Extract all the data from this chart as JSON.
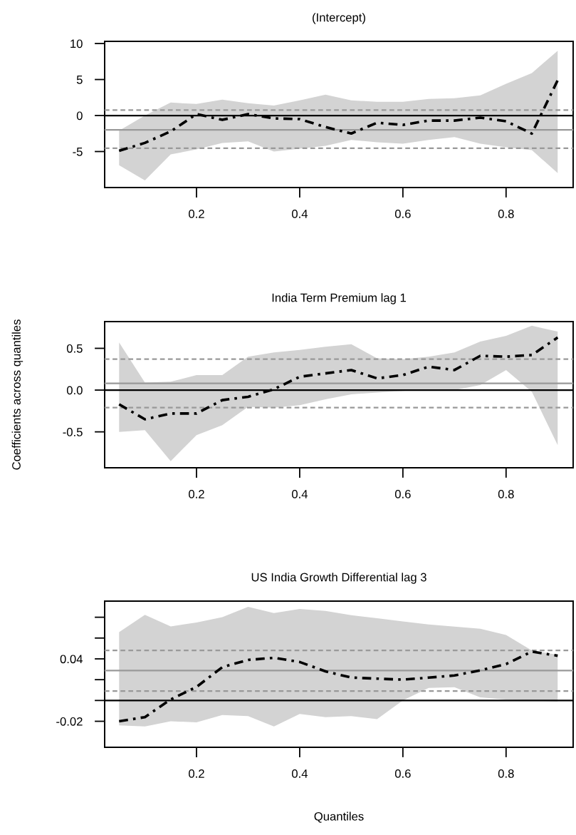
{
  "chart_data": [
    {
      "type": "line",
      "title": "(Intercept)",
      "x": [
        0.05,
        0.1,
        0.15,
        0.2,
        0.25,
        0.3,
        0.35,
        0.4,
        0.45,
        0.5,
        0.55,
        0.6,
        0.65,
        0.7,
        0.75,
        0.8,
        0.85,
        0.9
      ],
      "series": [
        {
          "color": "#000000",
          "line_style": "dashdot",
          "values": [
            -4.9,
            -3.8,
            -2.2,
            0.2,
            -0.6,
            0.2,
            -0.4,
            -0.5,
            -1.6,
            -2.5,
            -1.0,
            -1.3,
            -0.7,
            -0.7,
            -0.3,
            -0.8,
            -2.5,
            4.9
          ],
          "lower": [
            -6.9,
            -9.0,
            -5.4,
            -4.7,
            -3.8,
            -3.6,
            -5.0,
            -4.6,
            -4.2,
            -3.4,
            -3.7,
            -3.9,
            -3.4,
            -3.0,
            -3.9,
            -4.4,
            -4.8,
            -8.0
          ],
          "upper": [
            -2.1,
            0.0,
            1.8,
            1.6,
            2.2,
            1.7,
            1.4,
            2.1,
            2.9,
            2.1,
            1.9,
            1.9,
            2.3,
            2.4,
            2.8,
            4.4,
            5.9,
            9.0
          ]
        }
      ],
      "xlim": [
        0.022,
        0.93
      ],
      "xticks": [
        0.2,
        0.4,
        0.6,
        0.8
      ],
      "ylim": [
        -10,
        10.3
      ],
      "yticks": [
        -5,
        0,
        5,
        10
      ],
      "ref_lines": [
        {
          "axis": "y",
          "value": 0.75,
          "color": "#999999",
          "line_style": "dashed"
        },
        {
          "axis": "y",
          "value": -4.55,
          "color": "#999999",
          "line_style": "dashed"
        },
        {
          "axis": "y",
          "value": -2.0,
          "color": "#999999",
          "line_style": "solid"
        },
        {
          "axis": "y",
          "value": 0,
          "color": "#000000",
          "line_style": "solid"
        }
      ]
    },
    {
      "type": "line",
      "title": "India Term Premium lag 1",
      "ylabel": "Coefficients across quantiles",
      "x": [
        0.05,
        0.1,
        0.15,
        0.2,
        0.25,
        0.3,
        0.35,
        0.4,
        0.45,
        0.5,
        0.55,
        0.6,
        0.65,
        0.7,
        0.75,
        0.8,
        0.85,
        0.9
      ],
      "series": [
        {
          "color": "#000000",
          "line_style": "dashdot",
          "values": [
            -0.17,
            -0.35,
            -0.28,
            -0.28,
            -0.12,
            -0.08,
            0.01,
            0.16,
            0.2,
            0.24,
            0.14,
            0.18,
            0.28,
            0.24,
            0.41,
            0.4,
            0.42,
            0.63
          ],
          "lower": [
            -0.5,
            -0.48,
            -0.85,
            -0.54,
            -0.42,
            -0.2,
            -0.21,
            -0.18,
            -0.11,
            -0.05,
            -0.03,
            -0.01,
            0.01,
            0.0,
            0.06,
            0.24,
            -0.02,
            -0.66
          ],
          "upper": [
            0.57,
            0.09,
            0.1,
            0.18,
            0.18,
            0.4,
            0.45,
            0.48,
            0.52,
            0.55,
            0.38,
            0.37,
            0.4,
            0.45,
            0.58,
            0.65,
            0.77,
            0.7
          ]
        }
      ],
      "xlim": [
        0.022,
        0.93
      ],
      "xticks": [
        0.2,
        0.4,
        0.6,
        0.8
      ],
      "ylim": [
        -0.93,
        0.82
      ],
      "yticks": [
        {
          "value": -0.5,
          "label": "-0.5"
        },
        {
          "value": 0,
          "label": "0.0"
        },
        0.5
      ],
      "ref_lines": [
        {
          "axis": "y",
          "value": 0.37,
          "color": "#999999",
          "line_style": "dashed"
        },
        {
          "axis": "y",
          "value": -0.21,
          "color": "#999999",
          "line_style": "dashed"
        },
        {
          "axis": "y",
          "value": 0.08,
          "color": "#999999",
          "line_style": "solid"
        },
        {
          "axis": "y",
          "value": 0,
          "color": "#000000",
          "line_style": "solid"
        }
      ]
    },
    {
      "type": "line",
      "title": "US India Growth Differential lag 3",
      "xlabel": "Quantiles",
      "x": [
        0.05,
        0.1,
        0.15,
        0.2,
        0.25,
        0.3,
        0.35,
        0.4,
        0.45,
        0.5,
        0.55,
        0.6,
        0.65,
        0.7,
        0.75,
        0.8,
        0.85,
        0.9
      ],
      "series": [
        {
          "color": "#000000",
          "line_style": "dashdot",
          "values": [
            -0.02,
            -0.016,
            0.001,
            0.013,
            0.032,
            0.039,
            0.041,
            0.037,
            0.028,
            0.022,
            0.021,
            0.02,
            0.022,
            0.024,
            0.029,
            0.035,
            0.047,
            0.043
          ],
          "lower": [
            -0.024,
            -0.025,
            -0.02,
            -0.021,
            -0.014,
            -0.015,
            -0.025,
            -0.013,
            -0.016,
            -0.015,
            -0.018,
            0.0,
            0.012,
            0.0127,
            0.003,
            0.001,
            0.0,
            -0.001
          ],
          "upper": [
            0.0657,
            0.0823,
            0.0712,
            0.075,
            0.08,
            0.09,
            0.084,
            0.088,
            0.086,
            0.082,
            0.079,
            0.076,
            0.073,
            0.071,
            0.069,
            0.063,
            0.048,
            0.044
          ]
        }
      ],
      "xlim": [
        0.022,
        0.93
      ],
      "xticks": [
        0.2,
        0.4,
        0.6,
        0.8
      ],
      "ylim": [
        -0.045,
        0.0955
      ],
      "yticks": [
        {
          "value": -0.02,
          "label": "-0.02"
        },
        {
          "value": 0,
          "label": null
        },
        {
          "value": 0.02,
          "label": null
        },
        0.04,
        {
          "value": 0.06,
          "label": null
        },
        {
          "value": 0.08,
          "label": null
        }
      ],
      "ref_lines": [
        {
          "axis": "y",
          "value": 0.0481,
          "color": "#999999",
          "line_style": "dashed"
        },
        {
          "axis": "y",
          "value": 0.0091,
          "color": "#999999",
          "line_style": "dashed"
        },
        {
          "axis": "y",
          "value": 0.0288,
          "color": "#999999",
          "line_style": "solid"
        },
        {
          "axis": "y",
          "value": 0,
          "color": "#000000",
          "line_style": "solid"
        }
      ]
    }
  ]
}
